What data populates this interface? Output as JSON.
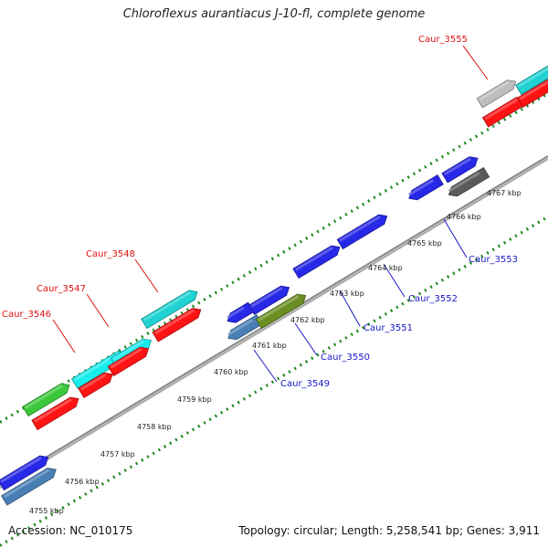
{
  "title": "Chloroflexus aurantiacus J-10-fl, complete genome",
  "footer": {
    "accession": "Accession: NC_010175",
    "stats": "Topology: circular; Length: 5,258,541 bp; Genes: 3,911"
  },
  "colors": {
    "backbone": "#8c8c8c",
    "tick": "#1f8a1f",
    "upper_label": "#dd1111",
    "lower_label": "#1818c8"
  },
  "kbp_ticks": [
    "4755 kbp",
    "4756 kbp",
    "4757 kbp",
    "4758 kbp",
    "4759 kbp",
    "4760 kbp",
    "4761 kbp",
    "4762 kbp",
    "4763 kbp",
    "4764 kbp",
    "4765 kbp",
    "4766 kbp",
    "4767 kbp"
  ],
  "gene_labels": [
    {
      "text": "Caur_3555",
      "strand": "upper"
    },
    {
      "text": "Caur_3548",
      "strand": "upper"
    },
    {
      "text": "Caur_3547",
      "strand": "upper"
    },
    {
      "text": "Caur_3546",
      "strand": "upper"
    },
    {
      "text": "Caur_3553",
      "strand": "lower"
    },
    {
      "text": "Caur_3552",
      "strand": "lower"
    },
    {
      "text": "Caur_3551",
      "strand": "lower"
    },
    {
      "text": "Caur_3550",
      "strand": "lower"
    },
    {
      "text": "Caur_3549",
      "strand": "lower"
    }
  ],
  "genes": [
    {
      "color": "#2828e8"
    },
    {
      "color": "#4a7fb5"
    },
    {
      "color": "#2828e8"
    },
    {
      "color": "#4a7fb5"
    },
    {
      "color": "#2828e8"
    },
    {
      "color": "#6b8e23"
    },
    {
      "color": "#2828e8"
    },
    {
      "color": "#2828e8"
    },
    {
      "color": "#2828e8"
    },
    {
      "color": "#2828e8"
    },
    {
      "color": "#5a5a5a"
    },
    {
      "color": "#3cc83c"
    },
    {
      "color": "#ff1414"
    },
    {
      "color": "#18ecec"
    },
    {
      "color": "#ff1414"
    },
    {
      "color": "#18ecec"
    },
    {
      "color": "#ff1414"
    },
    {
      "color": "#20d2d2"
    },
    {
      "color": "#ff1414"
    },
    {
      "color": "#bdbdbd"
    },
    {
      "color": "#ff1414"
    },
    {
      "color": "#20d2d2"
    },
    {
      "color": "#ff1414"
    }
  ]
}
